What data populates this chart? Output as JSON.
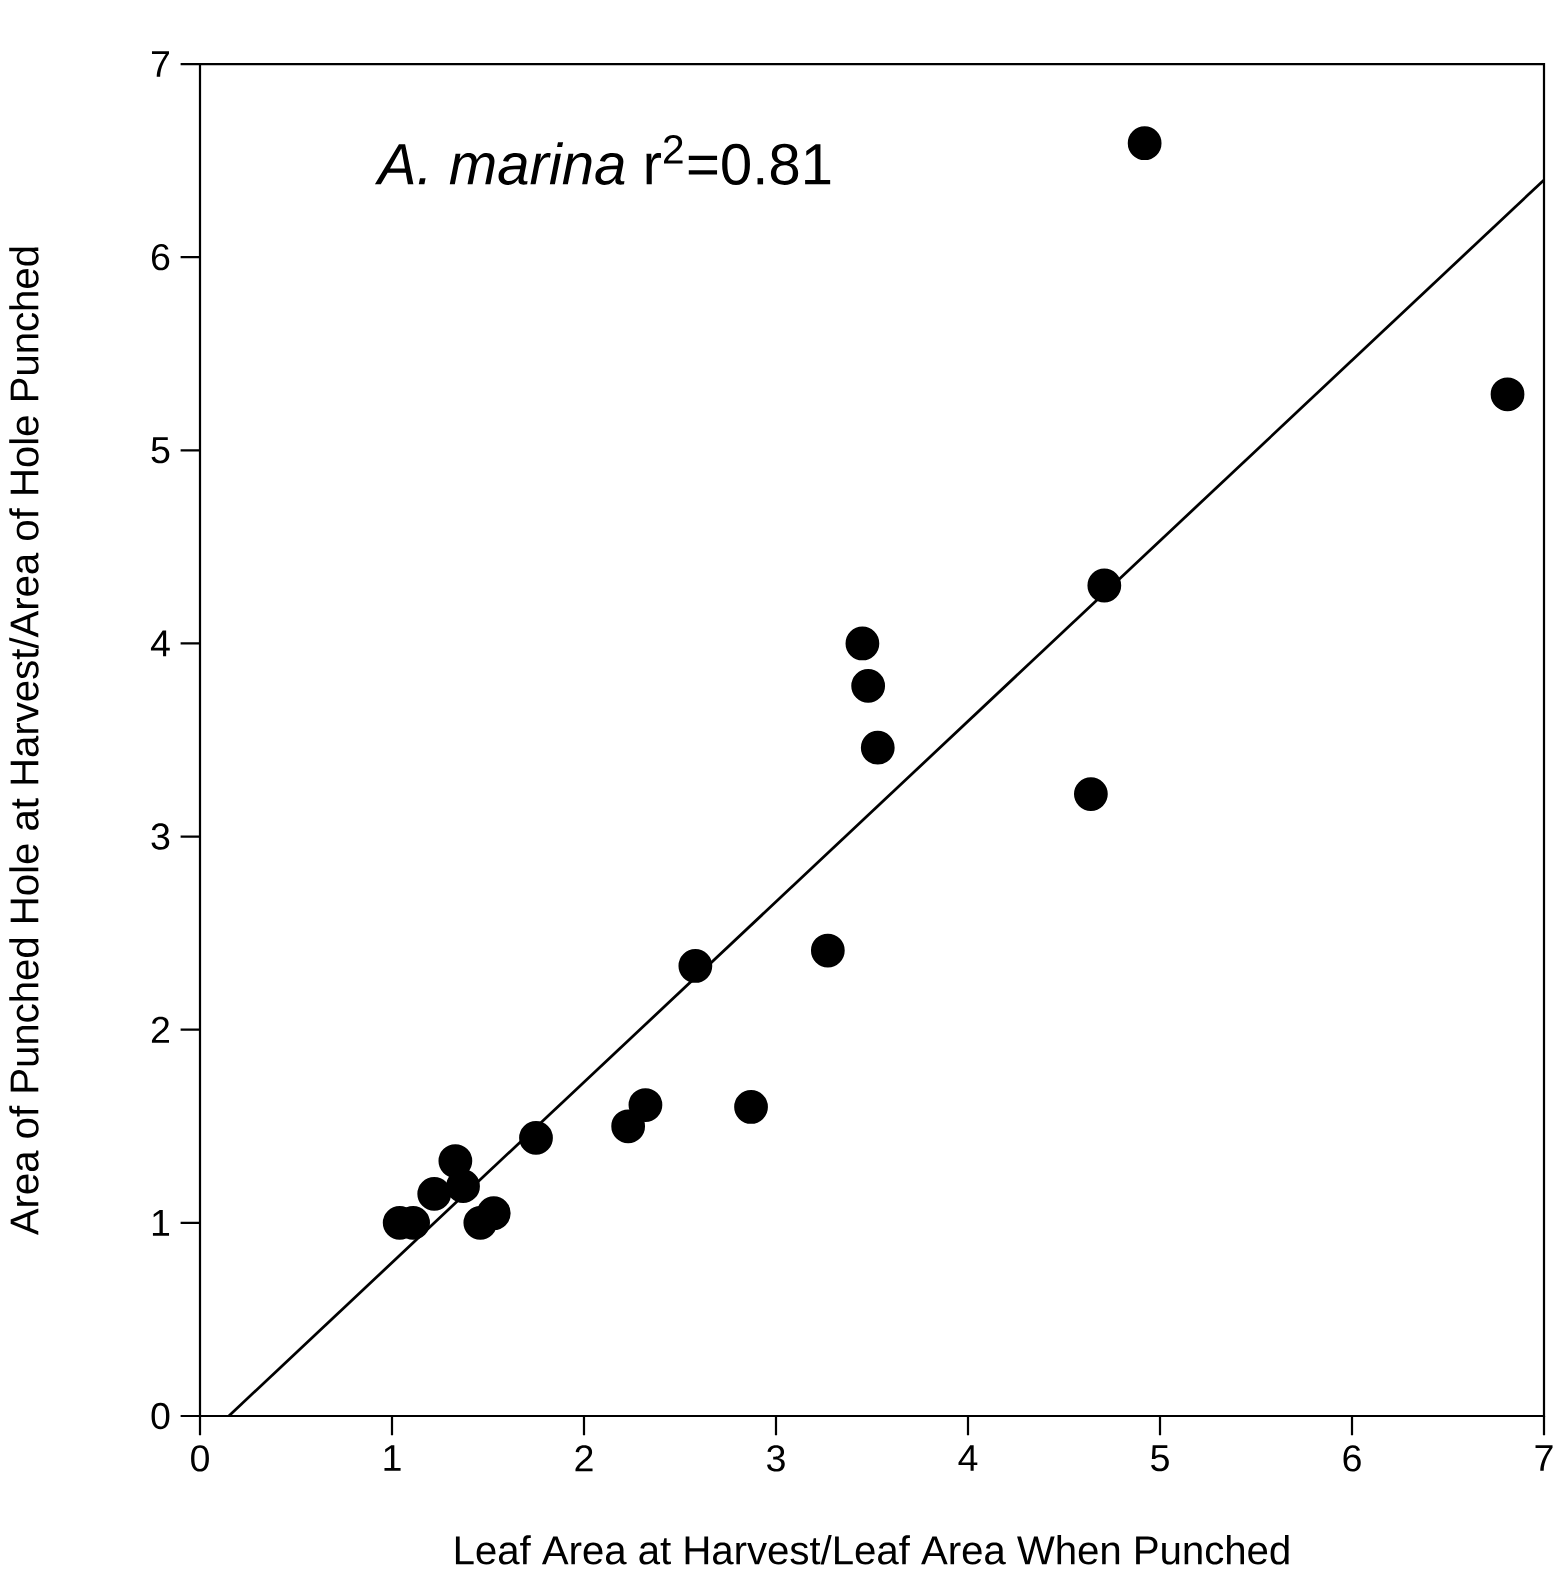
{
  "chart_data": {
    "type": "scatter",
    "xlabel": "Leaf Area at Harvest/Leaf Area When Punched",
    "ylabel": "Area of Punched Hole at Harvest/Area of Hole Punched",
    "annotations": [
      "*A. marina* r$^{2}$=0.81"
    ],
    "xlim": [
      0,
      7
    ],
    "ylim": [
      0,
      7
    ],
    "xticks": [
      0,
      1,
      2,
      3,
      4,
      5,
      6,
      7
    ],
    "yticks": [
      0,
      1,
      2,
      3,
      4,
      5,
      6,
      7
    ],
    "grid": false,
    "series": [
      {
        "type": "scatter",
        "color": "#000000",
        "marker": "circle",
        "x": [
          1.04,
          1.11,
          1.22,
          1.33,
          1.37,
          1.46,
          1.53,
          1.75,
          2.23,
          2.32,
          2.58,
          2.87,
          3.27,
          3.45,
          3.48,
          3.53,
          4.64,
          4.71,
          4.92,
          6.81
        ],
        "values": [
          1.0,
          1.0,
          1.15,
          1.32,
          1.19,
          1.0,
          1.05,
          1.44,
          1.5,
          1.61,
          2.33,
          1.6,
          2.41,
          4.0,
          3.78,
          3.46,
          3.22,
          4.3,
          6.59,
          5.29
        ]
      },
      {
        "type": "line",
        "color": "#000000",
        "marker": "none",
        "line_style": "solid",
        "x": [
          0.15,
          7
        ],
        "values": [
          0,
          6.4
        ]
      }
    ]
  }
}
